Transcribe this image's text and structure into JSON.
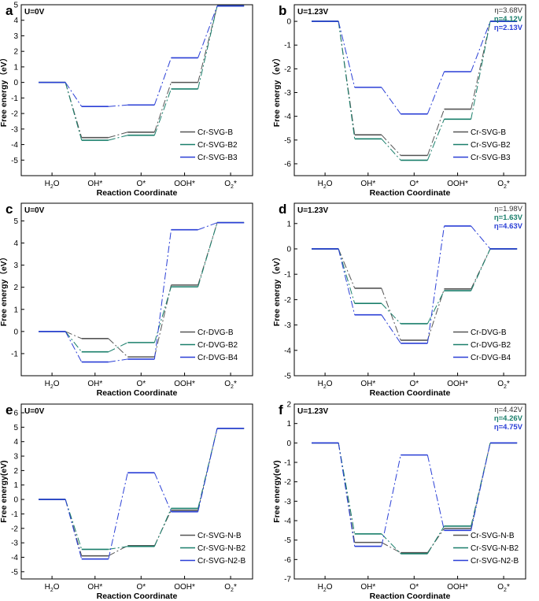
{
  "x_axis": {
    "label": "Reaction Coordinate",
    "ticks": [
      {
        "main": "H",
        "sub": "2",
        "tail": "O"
      },
      {
        "main": "OH*",
        "sub": "",
        "tail": ""
      },
      {
        "main": "O*",
        "sub": "",
        "tail": ""
      },
      {
        "main": "OOH*",
        "sub": "",
        "tail": ""
      },
      {
        "main": "O",
        "sub": "2",
        "tail": "*"
      }
    ]
  },
  "colors": {
    "B": "#555555",
    "B2": "#1a7f6b",
    "B3": "#2a3fd6",
    "eta_B": "#333333",
    "eta_B2": "#1a7f6b",
    "eta_B3": "#2a3fd6"
  },
  "chart_data": [
    {
      "type": "line",
      "panel": "a",
      "condition": "U=0V",
      "ylabel": "Free energy（eV）",
      "ylim": [
        -6,
        5
      ],
      "yticks": [
        -5,
        -4,
        -3,
        -2,
        -1,
        0,
        1,
        2,
        3,
        4,
        5
      ],
      "categories": [
        "H2O",
        "OH*",
        "O*",
        "OOH*",
        "O2*"
      ],
      "series": [
        {
          "name": "Cr-SVG-B",
          "values": [
            0,
            -3.55,
            -3.2,
            0,
            4.92
          ]
        },
        {
          "name": "Cr-SVG-B2",
          "values": [
            0,
            -3.72,
            -3.4,
            -0.42,
            4.92
          ]
        },
        {
          "name": "Cr-SVG-B3",
          "values": [
            0,
            -1.55,
            -1.45,
            1.58,
            4.92
          ]
        }
      ],
      "overpotentials": []
    },
    {
      "type": "line",
      "panel": "b",
      "condition": "U=1.23V",
      "ylabel": "Free energy（eV）",
      "ylim": [
        -6.5,
        0.7
      ],
      "yticks": [
        -6,
        -5,
        -4,
        -3,
        -2,
        -1,
        0
      ],
      "categories": [
        "H2O",
        "OH*",
        "O*",
        "OOH*",
        "O2*"
      ],
      "series": [
        {
          "name": "Cr-SVG-B",
          "values": [
            0,
            -4.78,
            -5.65,
            -3.7,
            0
          ]
        },
        {
          "name": "Cr-SVG-B2",
          "values": [
            0,
            -4.95,
            -5.85,
            -4.12,
            0
          ]
        },
        {
          "name": "Cr-SVG-B3",
          "values": [
            0,
            -2.78,
            -3.9,
            -2.12,
            0
          ]
        }
      ],
      "overpotentials": [
        "η=3.68V",
        "η=4.12V",
        "η=2.13V"
      ]
    },
    {
      "type": "line",
      "panel": "c",
      "condition": "U=0V",
      "ylabel": "Free energy（eV）",
      "ylim": [
        -2,
        5.8
      ],
      "yticks": [
        -1,
        0,
        1,
        2,
        3,
        4,
        5
      ],
      "categories": [
        "H2O",
        "OH*",
        "O*",
        "OOH*",
        "O2*"
      ],
      "series": [
        {
          "name": "Cr-DVG-B",
          "values": [
            0,
            -0.32,
            -1.15,
            2.1,
            4.92
          ]
        },
        {
          "name": "Cr-DVG-B2",
          "values": [
            0,
            -0.92,
            -0.5,
            2.02,
            4.92
          ]
        },
        {
          "name": "Cr-DVG-B4",
          "values": [
            0,
            -1.38,
            -1.25,
            4.6,
            4.92
          ]
        }
      ],
      "overpotentials": []
    },
    {
      "type": "line",
      "panel": "d",
      "condition": "U=1.23V",
      "ylabel": "Free energy（eV）",
      "ylim": [
        -5,
        1.8
      ],
      "yticks": [
        -5,
        -4,
        -3,
        -2,
        -1,
        0,
        1
      ],
      "categories": [
        "H2O",
        "OH*",
        "O*",
        "OOH*",
        "O2*"
      ],
      "series": [
        {
          "name": "Cr-DVG-B",
          "values": [
            0,
            -1.55,
            -3.6,
            -1.58,
            0
          ]
        },
        {
          "name": "Cr-DVG-B2",
          "values": [
            0,
            -2.15,
            -2.95,
            -1.65,
            0
          ]
        },
        {
          "name": "Cr-DVG-B4",
          "values": [
            0,
            -2.6,
            -3.72,
            0.9,
            0
          ]
        }
      ],
      "overpotentials": [
        "η=1.98V",
        "η=1.63V",
        "η=4.63V"
      ]
    },
    {
      "type": "line",
      "panel": "e",
      "condition": "U=0V",
      "ylabel": "Free energy(eV)",
      "ylim": [
        -5.5,
        6.6
      ],
      "yticks": [
        -5,
        -4,
        -3,
        -2,
        -1,
        0,
        1,
        2,
        3,
        4,
        5,
        6
      ],
      "categories": [
        "H2O",
        "OH*",
        "O*",
        "OOH*",
        "O2*"
      ],
      "series": [
        {
          "name": "Cr-SVG-N-B",
          "values": [
            0,
            -3.9,
            -3.2,
            -0.75,
            4.92
          ]
        },
        {
          "name": "Cr-SVG-N-B2",
          "values": [
            0,
            -3.45,
            -3.25,
            -0.62,
            4.92
          ]
        },
        {
          "name": "Cr-SVG-N2-B",
          "values": [
            0,
            -4.12,
            1.85,
            -0.85,
            4.92
          ]
        }
      ],
      "overpotentials": []
    },
    {
      "type": "line",
      "panel": "f",
      "condition": "U=1.23V",
      "ylabel": "Free energy(eV)",
      "ylim": [
        -7,
        2
      ],
      "yticks": [
        -7,
        -6,
        -5,
        -4,
        -3,
        -2,
        -1,
        0,
        1,
        2
      ],
      "categories": [
        "H2O",
        "OH*",
        "O*",
        "OOH*",
        "O2*"
      ],
      "series": [
        {
          "name": "Cr-SVG-N-B",
          "values": [
            0,
            -5.12,
            -5.65,
            -4.4,
            0
          ]
        },
        {
          "name": "Cr-SVG-N-B2",
          "values": [
            0,
            -4.68,
            -5.7,
            -4.28,
            0
          ]
        },
        {
          "name": "Cr-SVG-N2-B",
          "values": [
            0,
            -5.32,
            -0.62,
            -4.5,
            0
          ]
        }
      ],
      "overpotentials": [
        "η=4.42V",
        "η=4.26V",
        "η=4.75V"
      ]
    }
  ]
}
